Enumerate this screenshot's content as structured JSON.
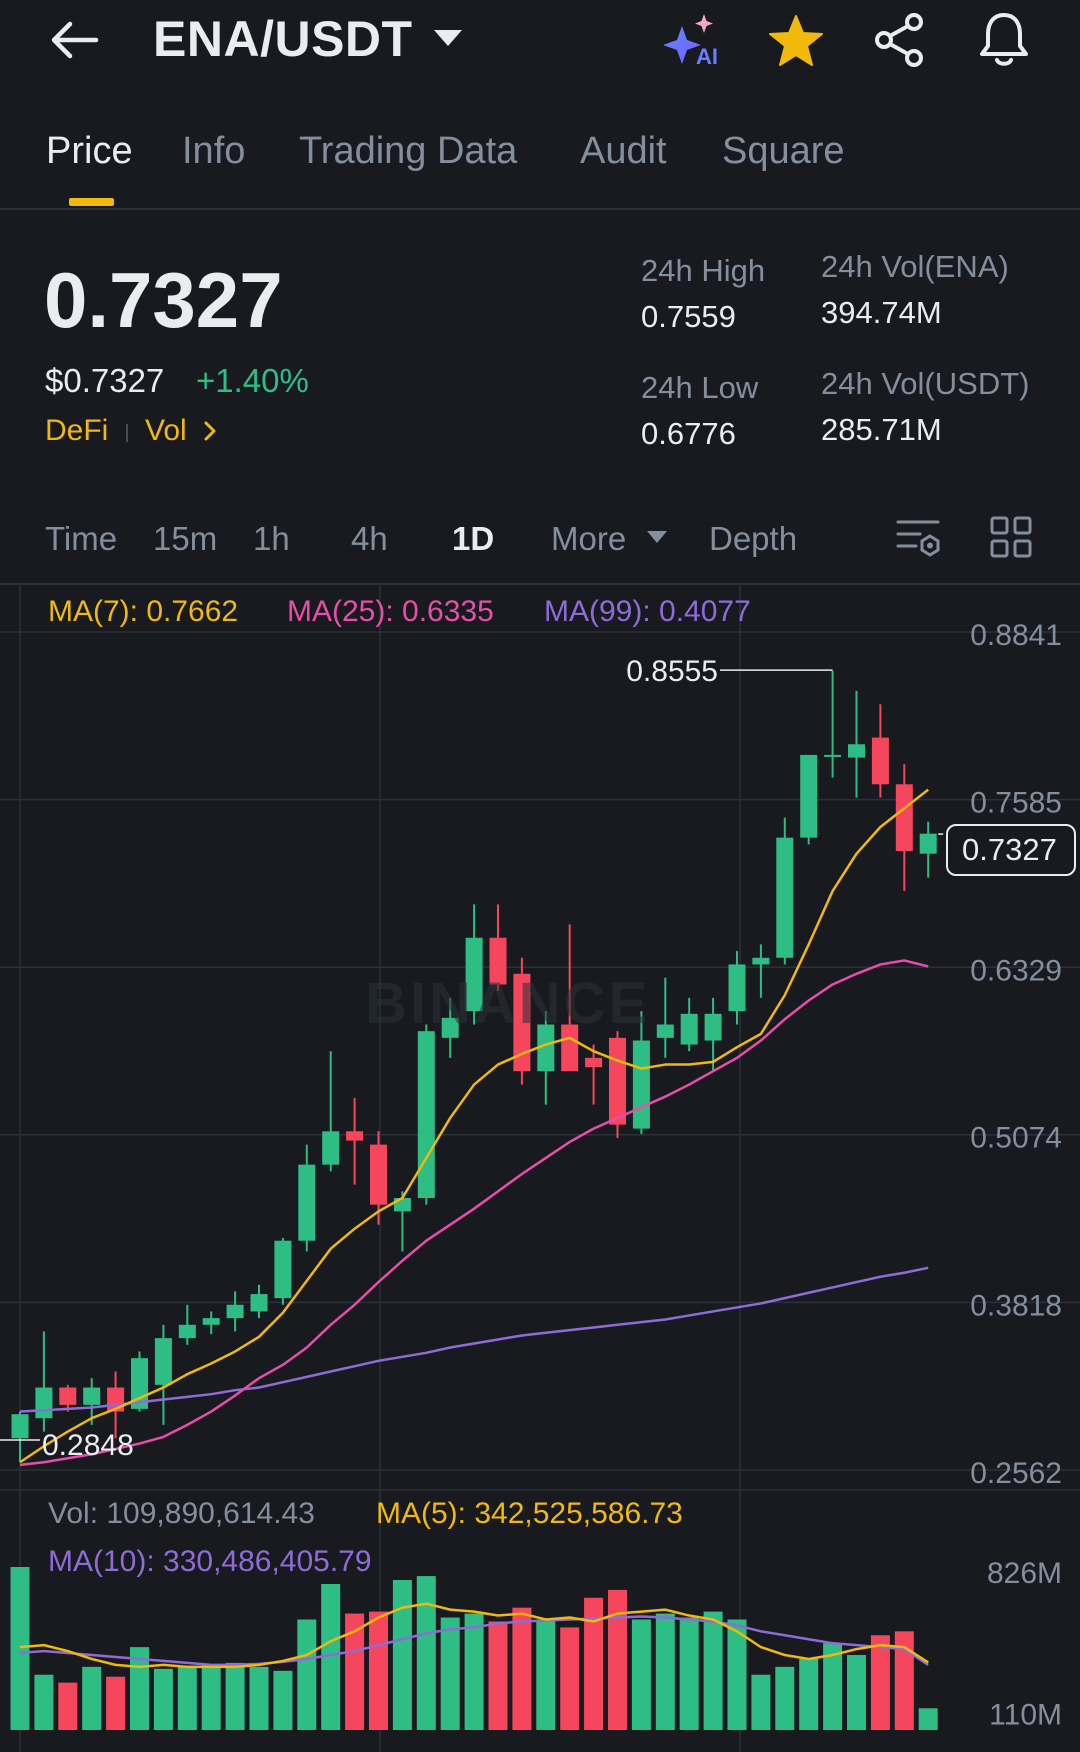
{
  "header": {
    "pair": "ENA/USDT",
    "ai_label": "AI"
  },
  "tabs": [
    "Price",
    "Info",
    "Trading Data",
    "Audit",
    "Square"
  ],
  "ticker": {
    "last_price": "0.7327",
    "usd_price": "$0.7327",
    "change_pct": "+1.40%",
    "tag_sector": "DeFi",
    "tag_vol": "Vol",
    "high_label": "24h High",
    "high_value": "0.7559",
    "low_label": "24h Low",
    "low_value": "0.6776",
    "vol_base_label": "24h Vol(ENA)",
    "vol_base_value": "394.74M",
    "vol_quote_label": "24h Vol(USDT)",
    "vol_quote_value": "285.71M"
  },
  "intervals": {
    "time": "Time",
    "m15": "15m",
    "h1": "1h",
    "h4": "4h",
    "d1": "1D",
    "more": "More",
    "depth": "Depth"
  },
  "ma_legend": {
    "ma7": "MA(7): 0.7662",
    "ma25": "MA(25): 0.6335",
    "ma99": "MA(99): 0.4077"
  },
  "volume_legend": {
    "vol": "Vol: 109,890,614.43",
    "ma5": "MA(5): 342,525,586.73",
    "ma10": "MA(10): 330,486,405.79"
  },
  "colors": {
    "up": "#2ebd85",
    "down": "#f6465d",
    "ma7": "#f0b90b",
    "ma25": "#e84ea9",
    "ma99": "#8f6bd8",
    "accent": "#f0b90b"
  },
  "watermark": "BINANCE",
  "chart_data": {
    "type": "candlestick",
    "interval": "1D",
    "y_ticks": [
      "0.8841",
      "0.7585",
      "0.6329",
      "0.5074",
      "0.3818",
      "0.2562"
    ],
    "ylim": [
      0.2562,
      0.8841
    ],
    "current_price": "0.7327",
    "high_marker": "0.8555",
    "low_marker": "0.2848",
    "volume_ticks": [
      "826M",
      "110M"
    ],
    "candles": [
      {
        "o": 0.28,
        "h": 0.3,
        "l": 0.262,
        "c": 0.298
      },
      {
        "o": 0.295,
        "h": 0.36,
        "l": 0.285,
        "c": 0.318
      },
      {
        "o": 0.318,
        "h": 0.32,
        "l": 0.3,
        "c": 0.305
      },
      {
        "o": 0.305,
        "h": 0.325,
        "l": 0.29,
        "c": 0.318
      },
      {
        "o": 0.318,
        "h": 0.33,
        "l": 0.28,
        "c": 0.3
      },
      {
        "o": 0.302,
        "h": 0.345,
        "l": 0.3,
        "c": 0.34
      },
      {
        "o": 0.32,
        "h": 0.365,
        "l": 0.29,
        "c": 0.355
      },
      {
        "o": 0.355,
        "h": 0.38,
        "l": 0.35,
        "c": 0.365
      },
      {
        "o": 0.365,
        "h": 0.375,
        "l": 0.358,
        "c": 0.37
      },
      {
        "o": 0.37,
        "h": 0.39,
        "l": 0.36,
        "c": 0.38
      },
      {
        "o": 0.375,
        "h": 0.395,
        "l": 0.37,
        "c": 0.388
      },
      {
        "o": 0.385,
        "h": 0.43,
        "l": 0.38,
        "c": 0.428
      },
      {
        "o": 0.428,
        "h": 0.5,
        "l": 0.42,
        "c": 0.485
      },
      {
        "o": 0.485,
        "h": 0.57,
        "l": 0.48,
        "c": 0.51
      },
      {
        "o": 0.51,
        "h": 0.535,
        "l": 0.47,
        "c": 0.503
      },
      {
        "o": 0.5,
        "h": 0.51,
        "l": 0.44,
        "c": 0.455
      },
      {
        "o": 0.45,
        "h": 0.465,
        "l": 0.42,
        "c": 0.46
      },
      {
        "o": 0.46,
        "h": 0.59,
        "l": 0.455,
        "c": 0.585
      },
      {
        "o": 0.58,
        "h": 0.61,
        "l": 0.565,
        "c": 0.595
      },
      {
        "o": 0.6,
        "h": 0.68,
        "l": 0.59,
        "c": 0.655
      },
      {
        "o": 0.655,
        "h": 0.68,
        "l": 0.615,
        "c": 0.62
      },
      {
        "o": 0.628,
        "h": 0.64,
        "l": 0.545,
        "c": 0.555
      },
      {
        "o": 0.555,
        "h": 0.6,
        "l": 0.53,
        "c": 0.59
      },
      {
        "o": 0.59,
        "h": 0.665,
        "l": 0.56,
        "c": 0.555
      },
      {
        "o": 0.565,
        "h": 0.575,
        "l": 0.53,
        "c": 0.558
      },
      {
        "o": 0.58,
        "h": 0.585,
        "l": 0.505,
        "c": 0.515
      },
      {
        "o": 0.512,
        "h": 0.6,
        "l": 0.508,
        "c": 0.578
      },
      {
        "o": 0.58,
        "h": 0.625,
        "l": 0.565,
        "c": 0.59
      },
      {
        "o": 0.575,
        "h": 0.61,
        "l": 0.57,
        "c": 0.598
      },
      {
        "o": 0.578,
        "h": 0.61,
        "l": 0.555,
        "c": 0.598
      },
      {
        "o": 0.6,
        "h": 0.645,
        "l": 0.59,
        "c": 0.635
      },
      {
        "o": 0.635,
        "h": 0.65,
        "l": 0.61,
        "c": 0.64
      },
      {
        "o": 0.64,
        "h": 0.745,
        "l": 0.635,
        "c": 0.73
      },
      {
        "o": 0.73,
        "h": 0.79,
        "l": 0.725,
        "c": 0.792
      },
      {
        "o": 0.792,
        "h": 0.855,
        "l": 0.775,
        "c": 0.792
      },
      {
        "o": 0.79,
        "h": 0.84,
        "l": 0.76,
        "c": 0.8
      },
      {
        "o": 0.805,
        "h": 0.83,
        "l": 0.76,
        "c": 0.77
      },
      {
        "o": 0.77,
        "h": 0.785,
        "l": 0.69,
        "c": 0.72
      },
      {
        "o": 0.718,
        "h": 0.742,
        "l": 0.7,
        "c": 0.733
      }
    ],
    "ma7": [
      0.262,
      0.274,
      0.285,
      0.295,
      0.302,
      0.31,
      0.318,
      0.328,
      0.336,
      0.345,
      0.356,
      0.374,
      0.398,
      0.422,
      0.437,
      0.45,
      0.46,
      0.49,
      0.52,
      0.545,
      0.56,
      0.568,
      0.575,
      0.58,
      0.57,
      0.563,
      0.557,
      0.56,
      0.56,
      0.562,
      0.573,
      0.583,
      0.612,
      0.65,
      0.69,
      0.718,
      0.738,
      0.752,
      0.766
    ],
    "ma25": [
      0.26,
      0.262,
      0.265,
      0.268,
      0.272,
      0.276,
      0.281,
      0.29,
      0.3,
      0.312,
      0.325,
      0.335,
      0.348,
      0.365,
      0.38,
      0.397,
      0.413,
      0.428,
      0.44,
      0.452,
      0.465,
      0.478,
      0.49,
      0.502,
      0.512,
      0.52,
      0.528,
      0.536,
      0.545,
      0.555,
      0.565,
      0.578,
      0.594,
      0.608,
      0.62,
      0.628,
      0.635,
      0.638,
      0.6335
    ],
    "ma99": [
      0.3,
      0.301,
      0.302,
      0.303,
      0.305,
      0.307,
      0.309,
      0.311,
      0.313,
      0.316,
      0.318,
      0.322,
      0.326,
      0.33,
      0.334,
      0.338,
      0.341,
      0.344,
      0.348,
      0.351,
      0.354,
      0.357,
      0.359,
      0.361,
      0.363,
      0.365,
      0.367,
      0.369,
      0.372,
      0.375,
      0.378,
      0.381,
      0.385,
      0.389,
      0.393,
      0.397,
      0.401,
      0.404,
      0.4077
    ],
    "volumes_m": [
      826,
      280,
      240,
      320,
      270,
      420,
      310,
      320,
      330,
      340,
      320,
      300,
      560,
      740,
      590,
      600,
      760,
      780,
      570,
      590,
      550,
      620,
      560,
      520,
      670,
      710,
      560,
      590,
      570,
      600,
      560,
      280,
      320,
      360,
      440,
      380,
      480,
      500,
      110
    ],
    "vol_ma5_m": [
      420,
      430,
      400,
      360,
      330,
      320,
      330,
      320,
      320,
      320,
      330,
      350,
      380,
      450,
      500,
      570,
      620,
      640,
      610,
      600,
      580,
      590,
      560,
      570,
      550,
      590,
      600,
      610,
      580,
      560,
      500,
      420,
      380,
      360,
      380,
      410,
      430,
      420,
      342.5
    ],
    "vol_ma10_m": [
      390,
      400,
      390,
      380,
      370,
      360,
      350,
      340,
      330,
      330,
      335,
      345,
      360,
      380,
      400,
      430,
      460,
      490,
      510,
      520,
      540,
      550,
      555,
      560,
      565,
      570,
      575,
      570,
      560,
      550,
      530,
      500,
      480,
      460,
      440,
      430,
      420,
      410,
      330.5
    ]
  }
}
